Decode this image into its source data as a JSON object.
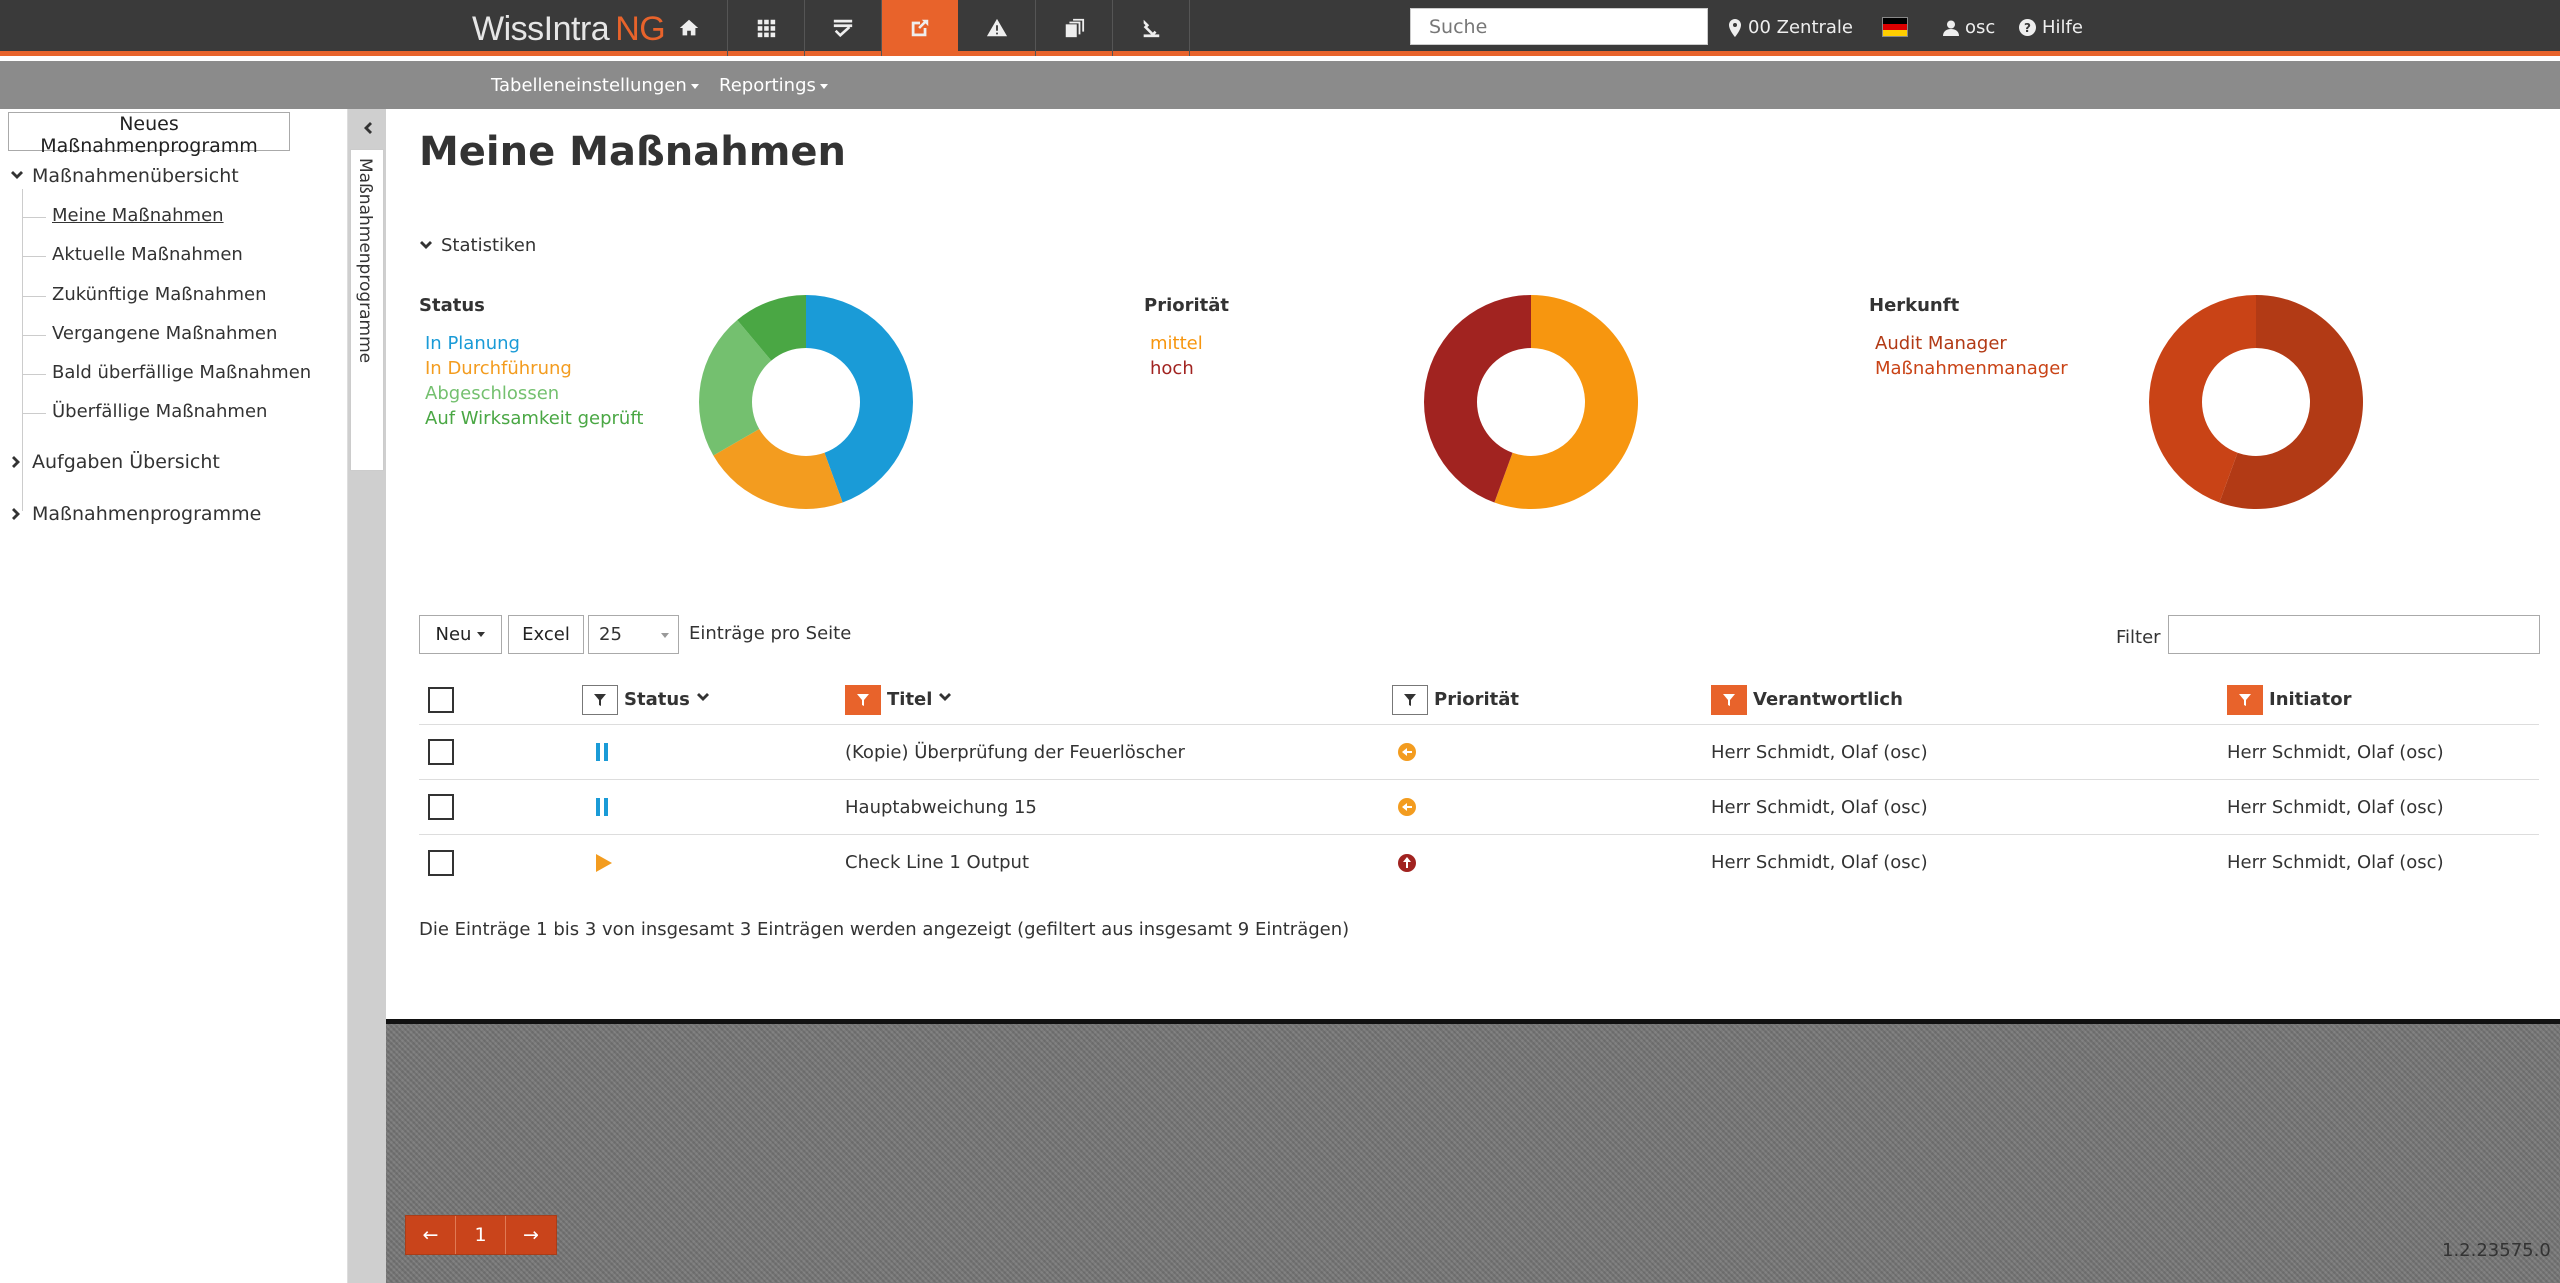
{
  "topbar": {
    "brand_main": "WissIntra",
    "brand_suffix": "NG",
    "search_placeholder": "Suche",
    "location": "00 Zentrale",
    "user": "osc",
    "help": "Hilfe",
    "nav_icons": [
      "home-icon",
      "apps-grid-icon",
      "checklist-icon",
      "actions-icon",
      "warning-icon",
      "documents-icon",
      "audit-icon"
    ],
    "accent_color": "#e8632b"
  },
  "subbar": {
    "table_settings": "Tabelleneinstellungen",
    "reportings": "Reportings"
  },
  "sidebar": {
    "new_program_button": "Neues Maßnahmenprogramm",
    "overview_label": "Maßnahmenübersicht",
    "items": [
      {
        "label": "Meine Maßnahmen",
        "active": true
      },
      {
        "label": "Aktuelle Maßnahmen"
      },
      {
        "label": "Zukünftige Maßnahmen"
      },
      {
        "label": "Vergangene Maßnahmen"
      },
      {
        "label": "Bald überfällige Maßnahmen"
      },
      {
        "label": "Überfällige Maßnahmen"
      }
    ],
    "tasks_label": "Aufgaben Übersicht",
    "programs_label": "Maßnahmenprogramme",
    "rail_tab_label": "Maßnahmenprogramme"
  },
  "main": {
    "title": "Meine Maßnahmen",
    "stats_label": "Statistiken"
  },
  "chart_data": [
    {
      "type": "pie",
      "title": "Status",
      "categories": [
        "In Planung",
        "In Durchführung",
        "Abgeschlossen",
        "Auf Wirksamkeit geprüft"
      ],
      "values": [
        4,
        2,
        2,
        1
      ],
      "colors": [
        "#1a9bd7",
        "#f39c1f",
        "#74c06f",
        "#4aa744"
      ]
    },
    {
      "type": "pie",
      "title": "Priorität",
      "categories": [
        "mittel",
        "hoch"
      ],
      "values": [
        5,
        4
      ],
      "colors": [
        "#f7960f",
        "#a12320"
      ]
    },
    {
      "type": "pie",
      "title": "Herkunft",
      "categories": [
        "Audit Manager",
        "Maßnahmenmanager"
      ],
      "values": [
        5,
        4
      ],
      "colors": [
        "#b23a15",
        "#c94316"
      ]
    }
  ],
  "table": {
    "new_button": "Neu",
    "excel_button": "Excel",
    "per_page_value": "25",
    "per_page_label": "Einträge pro Seite",
    "filter_label": "Filter",
    "columns": {
      "status": "Status",
      "title": "Titel",
      "priority": "Priorität",
      "responsible": "Verantwortlich",
      "initiator": "Initiator"
    },
    "rows": [
      {
        "status_icon": "pause-icon",
        "title": "(Kopie) Überprüfung der Feuerlöscher",
        "priority_icon": "priority-medium-icon",
        "responsible": "Herr Schmidt, Olaf (osc)",
        "initiator": "Herr Schmidt, Olaf (osc)"
      },
      {
        "status_icon": "pause-icon",
        "title": "Hauptabweichung 15",
        "priority_icon": "priority-medium-icon",
        "responsible": "Herr Schmidt, Olaf (osc)",
        "initiator": "Herr Schmidt, Olaf (osc)"
      },
      {
        "status_icon": "play-icon",
        "title": "Check Line 1 Output",
        "priority_icon": "priority-high-icon",
        "responsible": "Herr Schmidt, Olaf (osc)",
        "initiator": "Herr Schmidt, Olaf (osc)"
      }
    ],
    "summary": "Die Einträge 1 bis 3 von insgesamt 3 Einträgen werden angezeigt (gefiltert aus insgesamt 9 Einträgen)"
  },
  "pager": {
    "prev": "←",
    "page": "1",
    "next": "→"
  },
  "version": "1.2.23575.0"
}
